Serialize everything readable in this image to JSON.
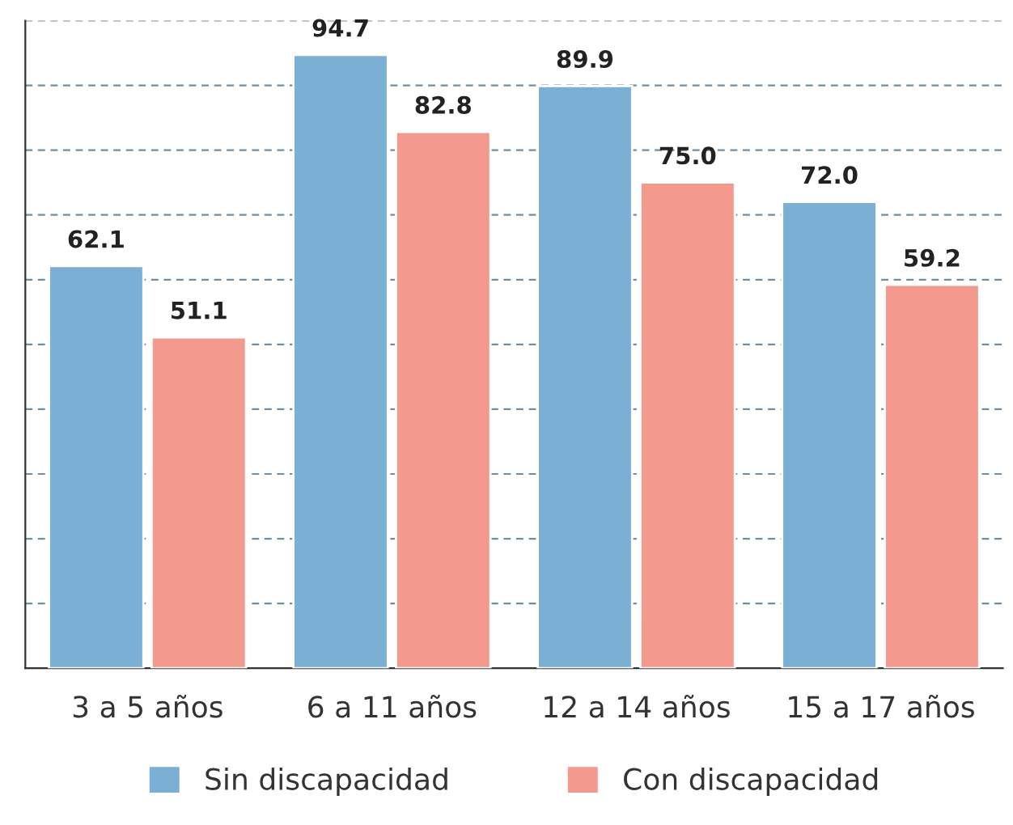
{
  "chart_data": {
    "type": "bar",
    "categories": [
      "3 a 5 años",
      "6 a 11 años",
      "12 a 14 años",
      "15 a 17 años"
    ],
    "series": [
      {
        "name": "Sin discapacidad",
        "color": "#7bafd4",
        "values": [
          62.1,
          94.7,
          89.9,
          72.0
        ],
        "value_labels": [
          "62.1",
          "94.7",
          "89.9",
          "72.0"
        ]
      },
      {
        "name": "Con discapacidad",
        "color": "#f4998d",
        "values": [
          51.1,
          82.8,
          75.0,
          59.2
        ],
        "value_labels": [
          "51.1",
          "82.8",
          "75.0",
          "59.2"
        ]
      }
    ],
    "ylim": [
      0,
      100
    ],
    "yticks": [
      {
        "value": 0,
        "label": null
      },
      {
        "value": 10,
        "label": null
      },
      {
        "value": 20,
        "label": null
      },
      {
        "value": 30,
        "label": null
      },
      {
        "value": 40,
        "label": null
      },
      {
        "value": 50,
        "label": null
      },
      {
        "value": 60,
        "label": null
      },
      {
        "value": 70,
        "label": null
      },
      {
        "value": 80,
        "label": null
      },
      {
        "value": 90,
        "label": null
      },
      {
        "value": 100,
        "label": null
      }
    ],
    "tick_labels": "x",
    "grid": "y",
    "legend": "bottom"
  }
}
